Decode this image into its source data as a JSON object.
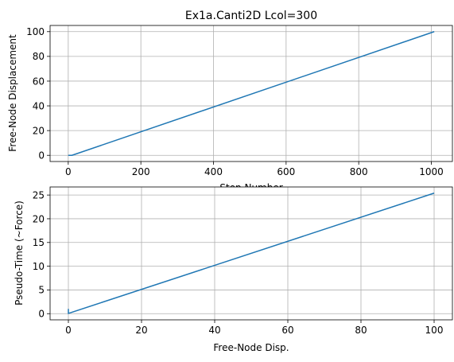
{
  "chart_data": [
    {
      "type": "line",
      "title": "Ex1a.Canti2D Lcol=300",
      "xlabel": "Step Number",
      "ylabel": "Free-Node Displacement",
      "xlim": [
        -50,
        1058
      ],
      "ylim": [
        -5,
        105
      ],
      "xticks": [
        0,
        200,
        400,
        600,
        800,
        1000
      ],
      "yticks": [
        0,
        20,
        40,
        60,
        80,
        100
      ],
      "grid": true,
      "series": [
        {
          "color": "#1f77b4",
          "x": [
            0,
            10,
            1008
          ],
          "y": [
            0,
            0,
            100
          ]
        }
      ]
    },
    {
      "type": "line",
      "title": "",
      "xlabel": "Free-Node Disp.",
      "ylabel": "Pseudo-Time (~Force)",
      "xlim": [
        -5,
        105
      ],
      "ylim": [
        -1.3,
        26.7
      ],
      "xticks": [
        0,
        20,
        40,
        60,
        80,
        100
      ],
      "yticks": [
        0,
        5,
        10,
        15,
        20,
        25
      ],
      "grid": true,
      "series": [
        {
          "color": "#1f77b4",
          "x": [
            0,
            0,
            0,
            100
          ],
          "y": [
            1.0,
            0.05,
            0.05,
            25.4
          ]
        }
      ]
    }
  ]
}
